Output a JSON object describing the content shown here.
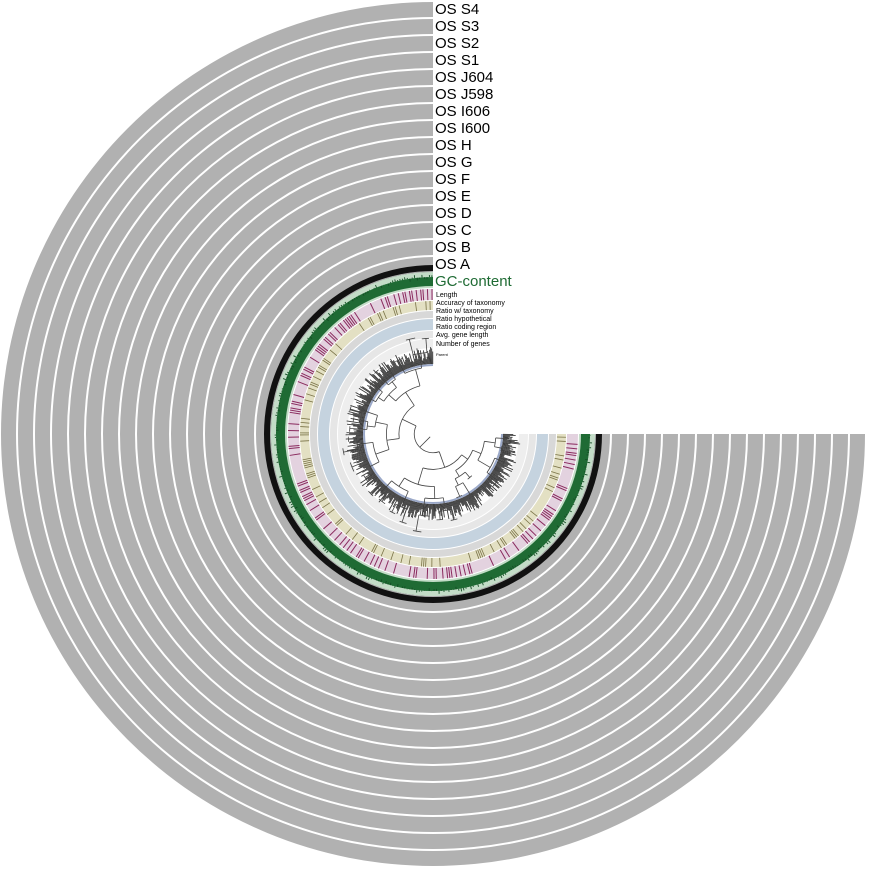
{
  "sample_labels": [
    "OS S4",
    "OS S3",
    "OS S2",
    "OS S1",
    "OS J604",
    "OS J598",
    "OS I606",
    "OS I600",
    "OS H",
    "OS G",
    "OS F",
    "OS E",
    "OS D",
    "OS C",
    "OS B",
    "OS A"
  ],
  "gc_label": "GC-content",
  "inner_labels": [
    "Length",
    "Accuracy of taxonomy",
    "Ratio w/ taxonomy",
    "Ratio hypothetical",
    "Ratio coding region",
    "Avg. gene length",
    "Number of genes"
  ],
  "tiny_label": "Parent",
  "colors": {
    "ring": "#b1b1b1",
    "gc": "#1f6b34",
    "gc_band": "#c3dcc7",
    "taxonomy_band": "#e3d2df",
    "taxonomy_ticks": "#8a2a5e",
    "ratio_taxonomy_band": "#e3e0c3",
    "ratio_hypothetical_band": "#d8d8d8",
    "coding_band": "#c5d3df",
    "bar_dark": "#3a3a3a",
    "text": "#111111"
  }
}
